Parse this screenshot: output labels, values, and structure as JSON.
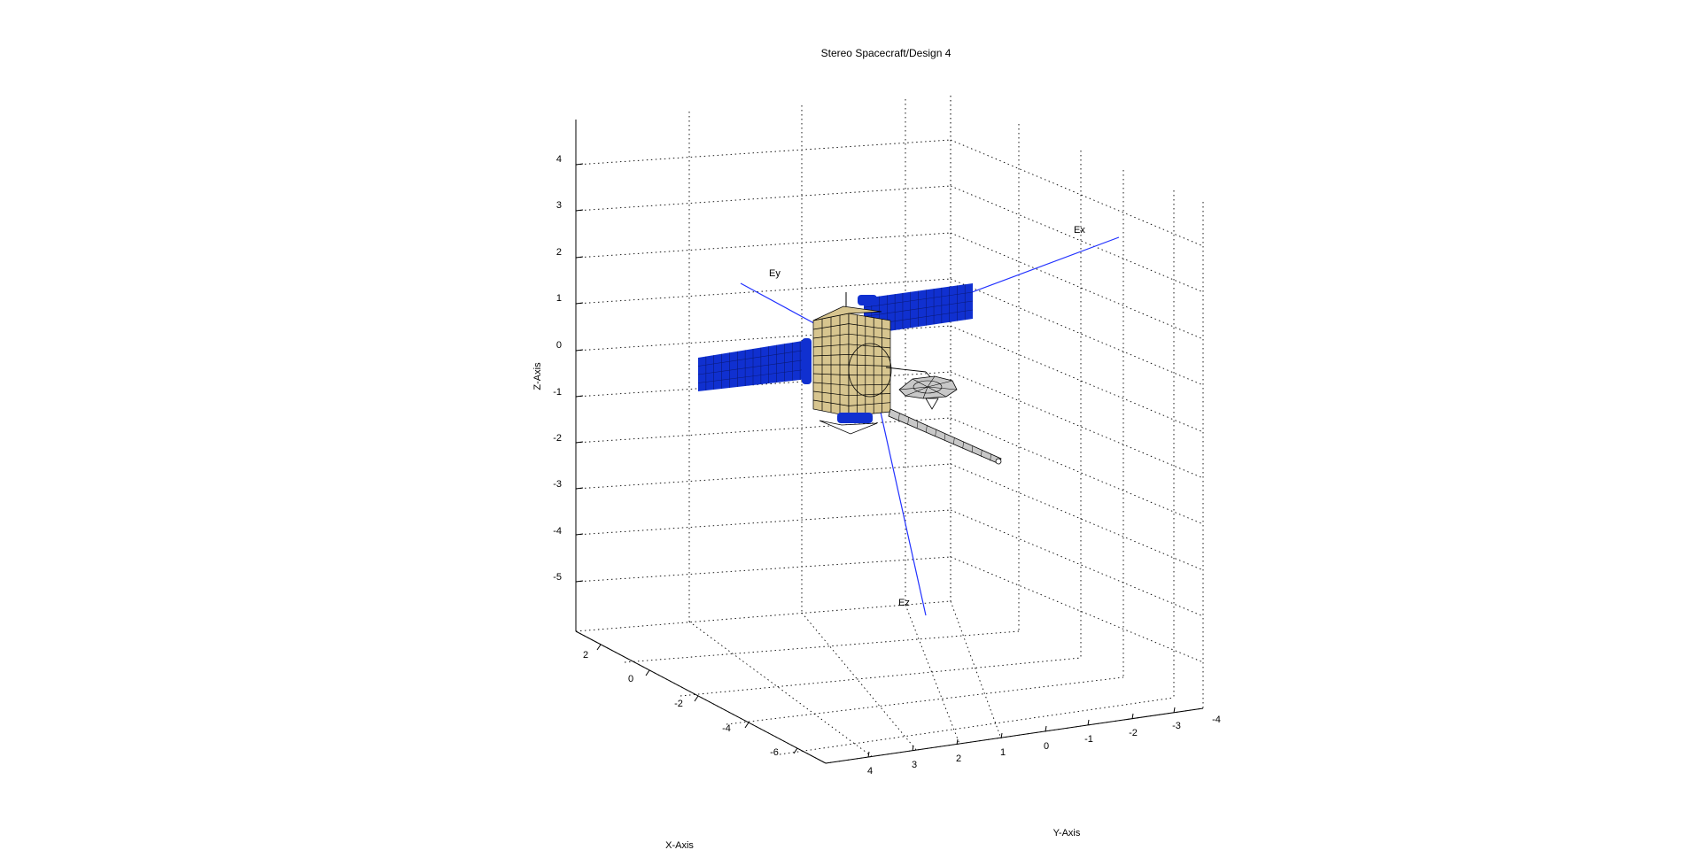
{
  "figure": {
    "title": "Stereo Spacecraft/Design 4",
    "xlabel": "X-Axis",
    "ylabel": "Y-Axis",
    "zlabel": "Z-Axis",
    "grid": true,
    "z_ticks": [
      "4",
      "3",
      "2",
      "1",
      "0",
      "-1",
      "-2",
      "-3",
      "-4",
      "-5"
    ],
    "x_ticks": [
      "2",
      "0",
      "-2",
      "-4",
      "-6"
    ],
    "y_ticks": [
      "4",
      "3",
      "2",
      "1",
      "0",
      "-1",
      "-2",
      "-3",
      "-4"
    ],
    "vector_labels": {
      "ex": "Ex",
      "ey": "Ey",
      "ez": "Ez"
    },
    "colors": {
      "solar_panel": "#1030d0",
      "body": "#d7c58f",
      "axis_vectors": "#2030ff",
      "antenna": "#c8c8c8"
    }
  }
}
